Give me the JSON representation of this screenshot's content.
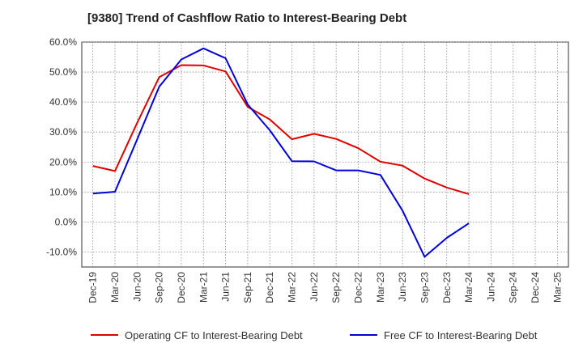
{
  "chart_data": {
    "type": "line",
    "title": "[9380]  Trend of Cashflow Ratio to Interest-Bearing Debt",
    "xlabel": "",
    "ylabel": "",
    "categories": [
      "Dec-19",
      "Mar-20",
      "Jun-20",
      "Sep-20",
      "Dec-20",
      "Mar-21",
      "Jun-21",
      "Sep-21",
      "Dec-21",
      "Mar-22",
      "Jun-22",
      "Sep-22",
      "Dec-22",
      "Mar-23",
      "Jun-23",
      "Sep-23",
      "Dec-23",
      "Mar-24",
      "Jun-24",
      "Sep-24",
      "Dec-24",
      "Mar-25"
    ],
    "ylim": [
      -15,
      60
    ],
    "yticks": [
      -10,
      0,
      10,
      20,
      30,
      40,
      50,
      60
    ],
    "ytick_labels": [
      "-10.0%",
      "0.0%",
      "10.0%",
      "20.0%",
      "30.0%",
      "40.0%",
      "50.0%",
      "60.0%"
    ],
    "grid": true,
    "legend_position": "bottom",
    "series": [
      {
        "name": "Operating CF to Interest-Bearing Debt",
        "color": "#e00000",
        "values": [
          18.7,
          17.0,
          33.0,
          48.3,
          52.3,
          52.2,
          50.2,
          38.4,
          34.2,
          27.6,
          29.4,
          27.7,
          24.6,
          20.1,
          18.8,
          14.5,
          11.5,
          9.3,
          null,
          null,
          null,
          null
        ]
      },
      {
        "name": "Free CF to Interest-Bearing Debt",
        "color": "#0000dd",
        "values": [
          9.5,
          10.1,
          27.5,
          45.1,
          54.2,
          57.9,
          54.6,
          39.2,
          30.6,
          20.3,
          20.2,
          17.2,
          17.2,
          15.7,
          3.8,
          -11.6,
          -5.3,
          -0.4,
          null,
          null,
          null,
          null
        ]
      }
    ]
  }
}
